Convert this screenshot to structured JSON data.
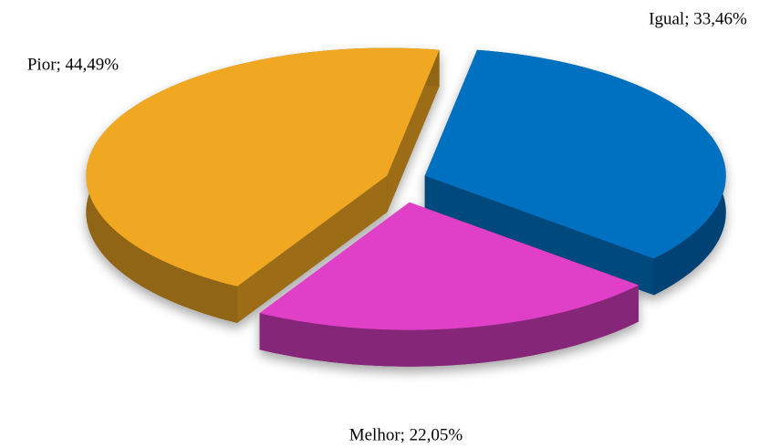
{
  "chart_data": {
    "type": "pie",
    "values": [
      33.46,
      22.05,
      44.49
    ],
    "value_labels": [
      "Igual; 33,46%",
      "Melhor; 22,05%",
      "Pior; 44,49%"
    ],
    "colors": [
      "#0070c0",
      "#e040c8",
      "#f0a820"
    ]
  }
}
